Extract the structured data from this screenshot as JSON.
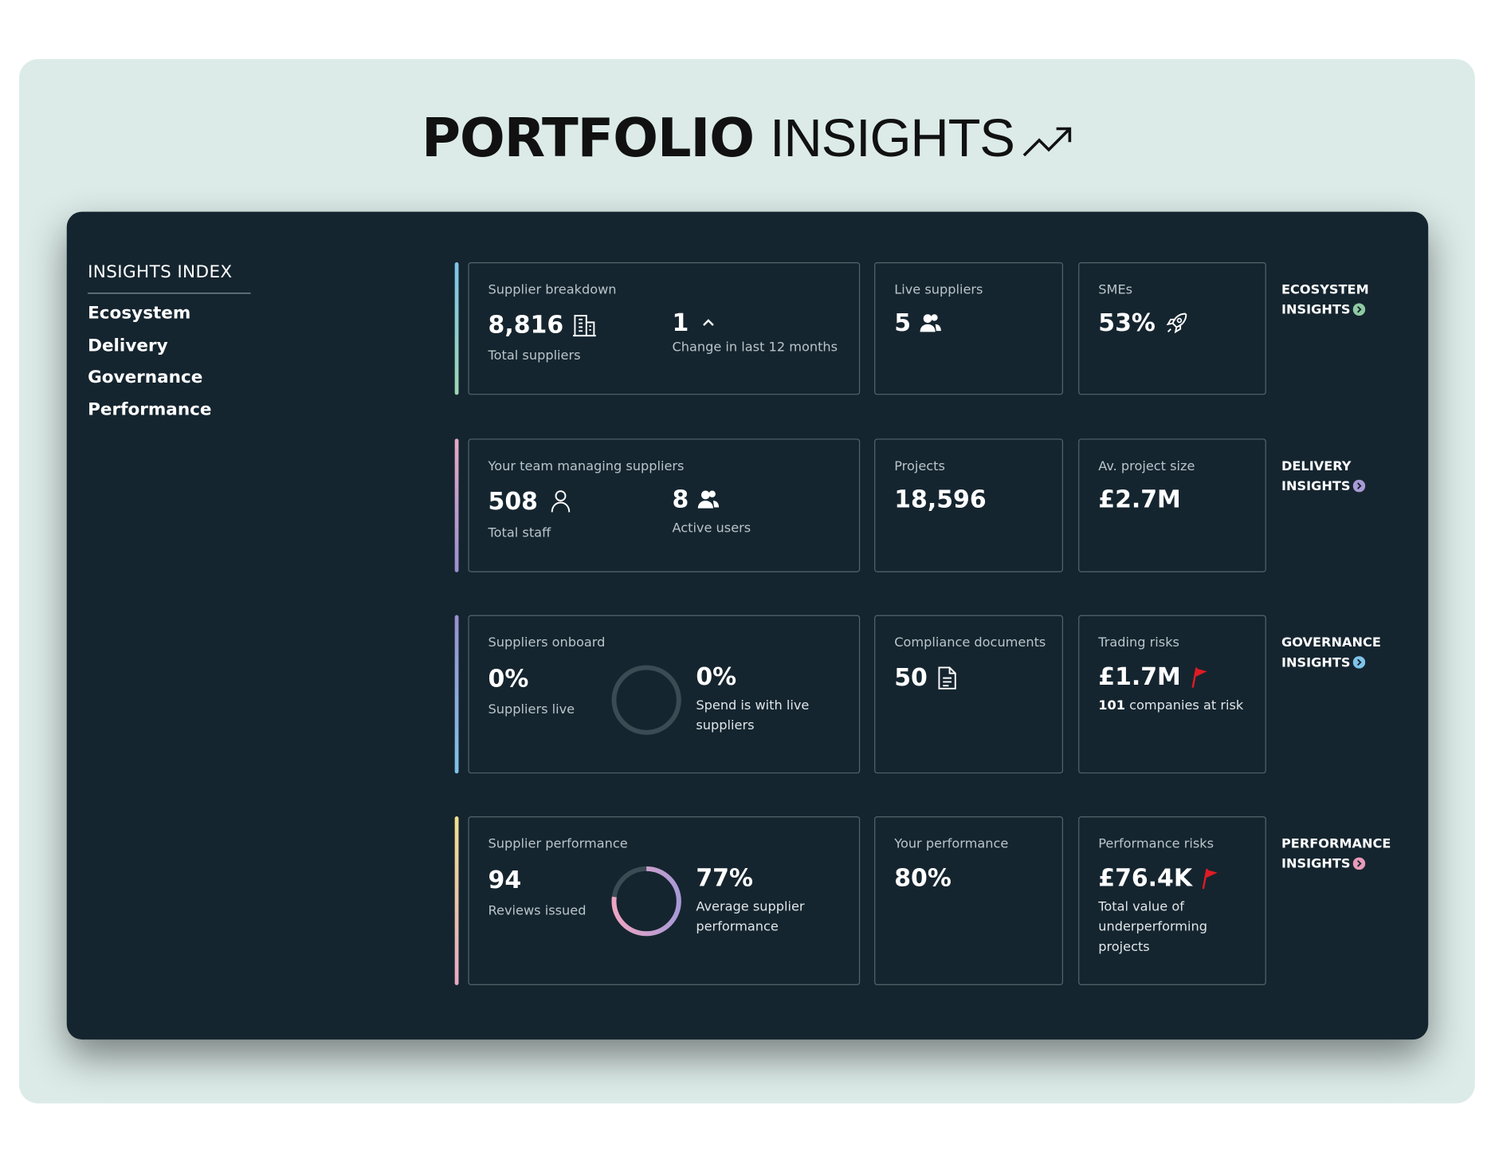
{
  "header": {
    "title_bold": "PORTFOLIO",
    "title_light": "INSIGHTS"
  },
  "index": {
    "heading": "INSIGHTS INDEX",
    "items": [
      "Ecosystem",
      "Delivery",
      "Governance",
      "Performance"
    ]
  },
  "sections": [
    {
      "link": "ECOSYSTEM INSIGHTS",
      "cards": [
        {
          "label": "Supplier breakdown",
          "metrics": [
            {
              "value": "8,816",
              "caption": "Total suppliers"
            },
            {
              "value": "1",
              "caption": "Change in last 12 months"
            }
          ]
        },
        {
          "label": "Live suppliers",
          "value": "5"
        },
        {
          "label": "SMEs",
          "value": "53%"
        }
      ]
    },
    {
      "link": "DELIVERY INSIGHTS",
      "cards": [
        {
          "label": "Your team managing suppliers",
          "metrics": [
            {
              "value": "508",
              "caption": "Total staff"
            },
            {
              "value": "8",
              "caption": "Active users"
            }
          ]
        },
        {
          "label": "Projects",
          "value": "18,596"
        },
        {
          "label": "Av. project size",
          "value": "£2.7M"
        }
      ]
    },
    {
      "link": "GOVERNANCE INSIGHTS",
      "cards": [
        {
          "label": "Suppliers onboard",
          "metrics": [
            {
              "value": "0%",
              "caption": "Suppliers live"
            },
            {
              "value": {
                "value": 0,
                "label": "0%"
              },
              "caption": "Spend is with live suppliers"
            }
          ]
        },
        {
          "label": "Compliance documents",
          "value": "50"
        },
        {
          "label": "Trading risks",
          "value": "£1.7M",
          "note_strong": "101",
          "note": "companies at risk"
        }
      ]
    },
    {
      "link": "PERFORMANCE INSIGHTS",
      "cards": [
        {
          "label": "Supplier performance",
          "metrics": [
            {
              "value": "94",
              "caption": "Reviews issued"
            },
            {
              "value": {
                "value": 77,
                "label": "77%"
              },
              "caption": "Average supplier performance"
            }
          ]
        },
        {
          "label": "Your performance",
          "value": "80%"
        },
        {
          "label": "Performance risks",
          "value": "£76.4K",
          "note": "Total value of underperforming projects"
        }
      ]
    }
  ]
}
